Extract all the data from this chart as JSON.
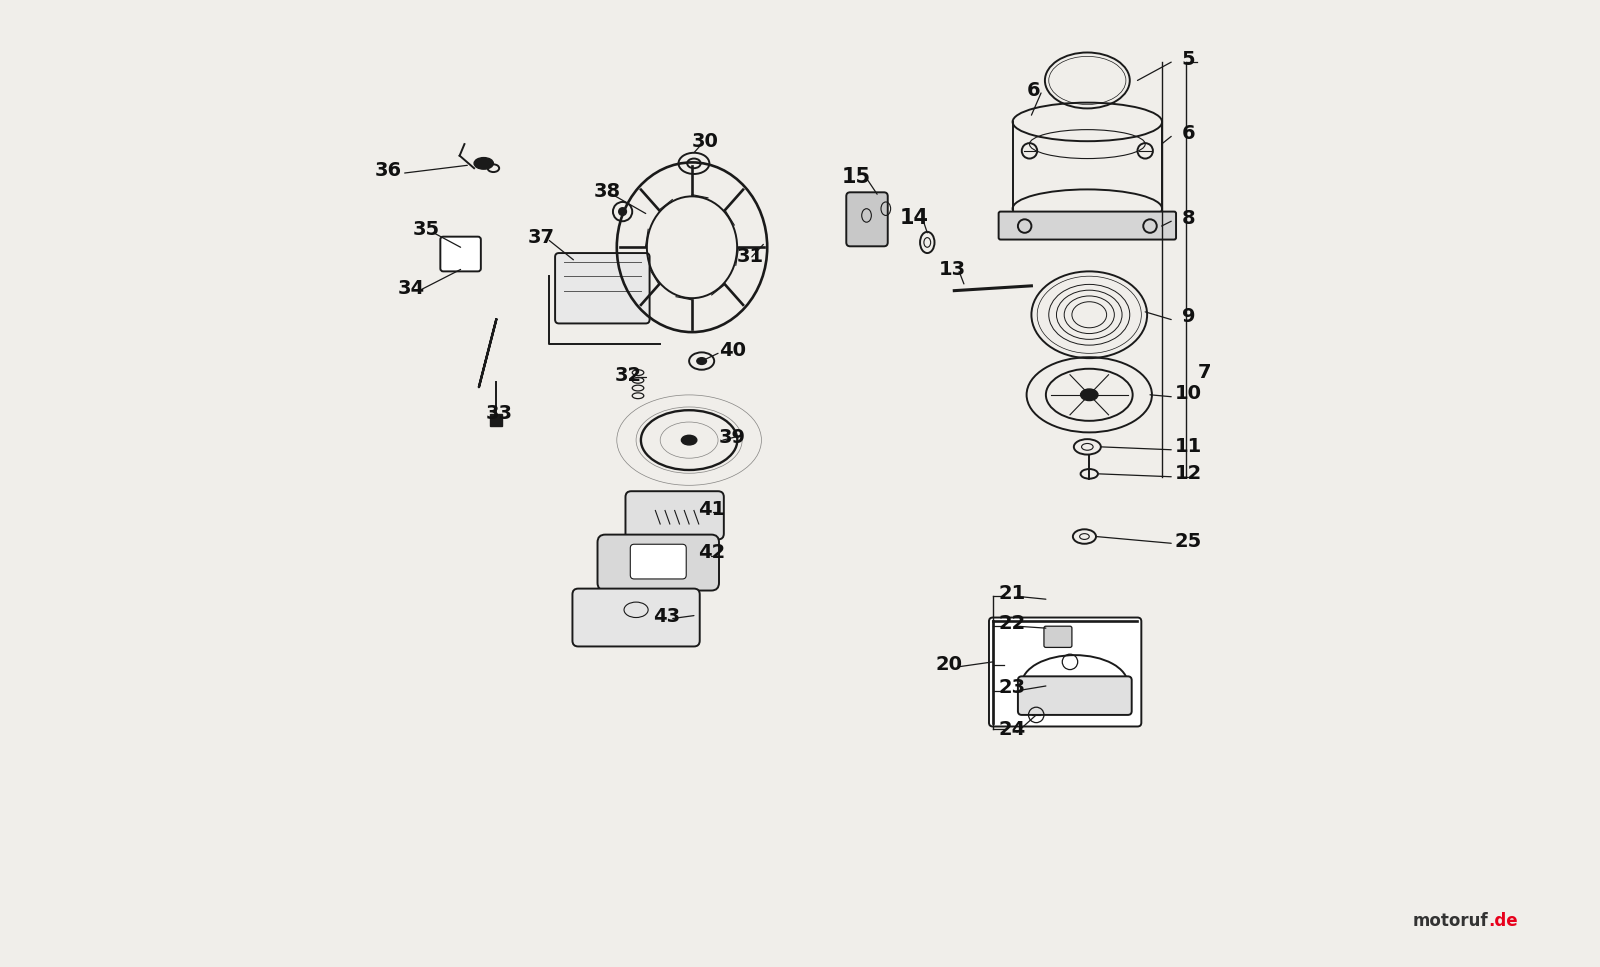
{
  "background_color": "#f0eeea",
  "line_color": "#1a1a1a",
  "text_color": "#111111",
  "watermark": "motoruf.de"
}
